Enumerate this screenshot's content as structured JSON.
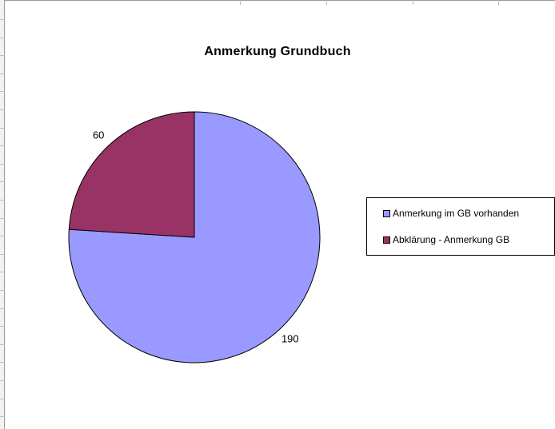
{
  "chart_data": {
    "type": "pie",
    "title": "Anmerkung Grundbuch",
    "series": [
      {
        "categories": [
          "Anmerkung im GB vorhanden",
          "Abklärung - Anmerkung GB"
        ],
        "values": [
          190,
          60
        ],
        "colors": [
          "#9999ff",
          "#993366"
        ]
      }
    ],
    "data_labels": [
      "190",
      "60"
    ],
    "start_angle_deg": 0,
    "direction": "clockwise",
    "legend_position": "right"
  }
}
